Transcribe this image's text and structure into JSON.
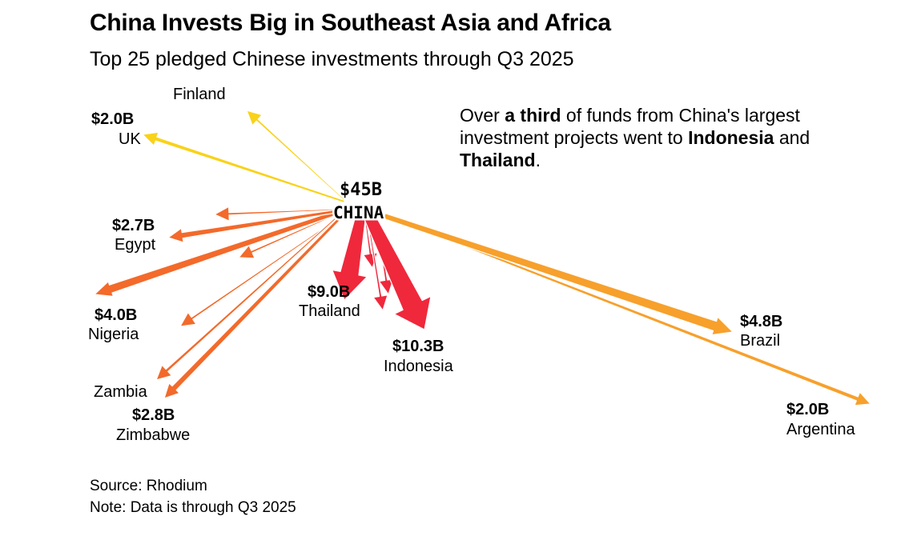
{
  "chart_data": {
    "type": "flow-map",
    "title": "China Invests Big in Southeast Asia and Africa",
    "subtitle": "Top 25 pledged Chinese investments through Q3 2025",
    "origin": {
      "name": "CHINA",
      "value_label": "$45B",
      "value": 45
    },
    "annotation": {
      "p1": "Over ",
      "b1": "a third",
      "p2": " of funds from China's largest investment projects went to ",
      "b2": "Indonesia",
      "p3": " and ",
      "b3": "Thailand",
      "p4": "."
    },
    "destinations": [
      {
        "name": "Indonesia",
        "value": 10.3,
        "value_label": "$10.3B"
      },
      {
        "name": "Thailand",
        "value": 9.0,
        "value_label": "$9.0B"
      },
      {
        "name": "Brazil",
        "value": 4.8,
        "value_label": "$4.8B"
      },
      {
        "name": "Nigeria",
        "value": 4.0,
        "value_label": "$4.0B"
      },
      {
        "name": "Zimbabwe",
        "value": 2.8,
        "value_label": "$2.8B"
      },
      {
        "name": "Egypt",
        "value": 2.7,
        "value_label": "$2.7B"
      },
      {
        "name": "UK",
        "value": 2.0,
        "value_label": "$2.0B"
      },
      {
        "name": "Argentina",
        "value": 2.0,
        "value_label": "$2.0B"
      },
      {
        "name": "Finland",
        "value": 1.2,
        "value_label": ""
      },
      {
        "name": "Zambia",
        "value": 1.5,
        "value_label": ""
      }
    ],
    "colors": {
      "red": "#f0283c",
      "orange_dark": "#f36a2b",
      "orange": "#f7a02c",
      "yellow": "#f9d21a"
    }
  },
  "footer": {
    "source": "Source: Rhodium",
    "note": "Note: Data is through Q3 2025"
  }
}
